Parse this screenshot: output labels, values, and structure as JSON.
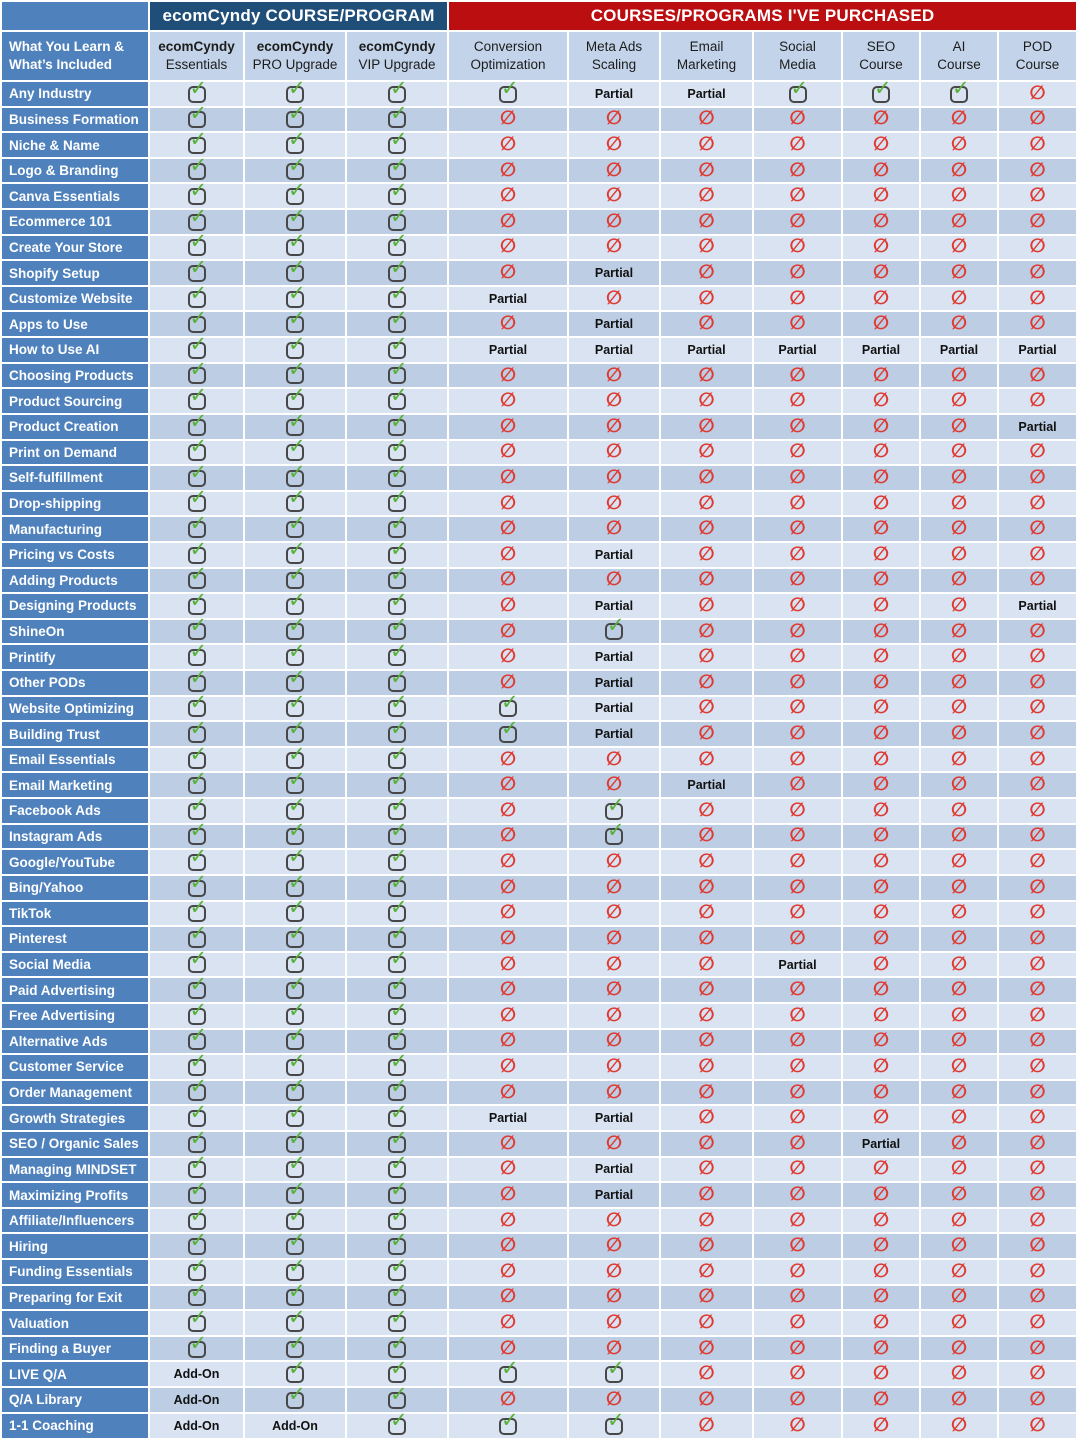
{
  "header": {
    "group1": "ecomCyndy COURSE/PROGRAM",
    "group2": "COURSES/PROGRAMS I'VE PURCHASED",
    "row_header_line1": "What You Learn &",
    "row_header_line2": "What’s Included"
  },
  "labels": {
    "partial": "Partial",
    "addon": "Add-On"
  },
  "icons": {
    "check": "check-icon",
    "no": "not-included-icon"
  },
  "colors": {
    "group_blue": "#1F4E79",
    "group_red": "#BB0E10",
    "label_blue": "#4F81BD",
    "col_header_bg": "#C3D4EA",
    "row_light": "#D9E3F1",
    "row_dark": "#BCCDE4",
    "check_green": "#58B23A",
    "no_red": "#DE3A31"
  },
  "chart_data": {
    "type": "table",
    "title": "ecomCyndy course comparison",
    "cell_codes": {
      "check": "included",
      "no": "not included",
      "partial": "partially included",
      "addon": "available as add-on"
    },
    "columns": [
      {
        "id": "ecomcyndy-essentials",
        "line1": "ecomCyndy",
        "line2": "Essentials",
        "bold": true
      },
      {
        "id": "ecomcyndy-pro-upgrade",
        "line1": "ecomCyndy",
        "line2": "PRO Upgrade",
        "bold": true
      },
      {
        "id": "ecomcyndy-vip-upgrade",
        "line1": "ecomCyndy",
        "line2": "VIP Upgrade",
        "bold": true
      },
      {
        "id": "conversion-optimization",
        "line1": "Conversion",
        "line2": "Optimization",
        "bold": false
      },
      {
        "id": "meta-ads-scaling",
        "line1": "Meta Ads",
        "line2": "Scaling",
        "bold": false
      },
      {
        "id": "email-marketing",
        "line1": "Email",
        "line2": "Marketing",
        "bold": false
      },
      {
        "id": "social-media",
        "line1": "Social",
        "line2": "Media",
        "bold": false
      },
      {
        "id": "seo-course",
        "line1": "SEO",
        "line2": "Course",
        "bold": false
      },
      {
        "id": "ai-course",
        "line1": "AI",
        "line2": "Course",
        "bold": false
      },
      {
        "id": "pod-course",
        "line1": "POD",
        "line2": "Course",
        "bold": false
      }
    ],
    "rows": [
      {
        "label": "Any Industry",
        "cells": [
          "check",
          "check",
          "check",
          "check",
          "partial",
          "partial",
          "check",
          "check",
          "check",
          "no"
        ]
      },
      {
        "label": "Business Formation",
        "cells": [
          "check",
          "check",
          "check",
          "no",
          "no",
          "no",
          "no",
          "no",
          "no",
          "no"
        ]
      },
      {
        "label": "Niche & Name",
        "cells": [
          "check",
          "check",
          "check",
          "no",
          "no",
          "no",
          "no",
          "no",
          "no",
          "no"
        ]
      },
      {
        "label": "Logo & Branding",
        "cells": [
          "check",
          "check",
          "check",
          "no",
          "no",
          "no",
          "no",
          "no",
          "no",
          "no"
        ]
      },
      {
        "label": "Canva Essentials",
        "cells": [
          "check",
          "check",
          "check",
          "no",
          "no",
          "no",
          "no",
          "no",
          "no",
          "no"
        ]
      },
      {
        "label": "Ecommerce 101",
        "cells": [
          "check",
          "check",
          "check",
          "no",
          "no",
          "no",
          "no",
          "no",
          "no",
          "no"
        ]
      },
      {
        "label": "Create Your Store",
        "cells": [
          "check",
          "check",
          "check",
          "no",
          "no",
          "no",
          "no",
          "no",
          "no",
          "no"
        ]
      },
      {
        "label": "Shopify Setup",
        "cells": [
          "check",
          "check",
          "check",
          "no",
          "partial",
          "no",
          "no",
          "no",
          "no",
          "no"
        ]
      },
      {
        "label": "Customize Website",
        "cells": [
          "check",
          "check",
          "check",
          "partial",
          "no",
          "no",
          "no",
          "no",
          "no",
          "no"
        ]
      },
      {
        "label": "Apps to Use",
        "cells": [
          "check",
          "check",
          "check",
          "no",
          "partial",
          "no",
          "no",
          "no",
          "no",
          "no"
        ]
      },
      {
        "label": "How to Use AI",
        "cells": [
          "check",
          "check",
          "check",
          "partial",
          "partial",
          "partial",
          "partial",
          "partial",
          "partial",
          "partial"
        ]
      },
      {
        "label": "Choosing Products",
        "cells": [
          "check",
          "check",
          "check",
          "no",
          "no",
          "no",
          "no",
          "no",
          "no",
          "no"
        ]
      },
      {
        "label": "Product Sourcing",
        "cells": [
          "check",
          "check",
          "check",
          "no",
          "no",
          "no",
          "no",
          "no",
          "no",
          "no"
        ]
      },
      {
        "label": "Product Creation",
        "cells": [
          "check",
          "check",
          "check",
          "no",
          "no",
          "no",
          "no",
          "no",
          "no",
          "partial"
        ]
      },
      {
        "label": "Print on Demand",
        "cells": [
          "check",
          "check",
          "check",
          "no",
          "no",
          "no",
          "no",
          "no",
          "no",
          "no"
        ]
      },
      {
        "label": "Self-fulfillment",
        "cells": [
          "check",
          "check",
          "check",
          "no",
          "no",
          "no",
          "no",
          "no",
          "no",
          "no"
        ]
      },
      {
        "label": "Drop-shipping",
        "cells": [
          "check",
          "check",
          "check",
          "no",
          "no",
          "no",
          "no",
          "no",
          "no",
          "no"
        ]
      },
      {
        "label": "Manufacturing",
        "cells": [
          "check",
          "check",
          "check",
          "no",
          "no",
          "no",
          "no",
          "no",
          "no",
          "no"
        ]
      },
      {
        "label": "Pricing vs Costs",
        "cells": [
          "check",
          "check",
          "check",
          "no",
          "partial",
          "no",
          "no",
          "no",
          "no",
          "no"
        ]
      },
      {
        "label": "Adding Products",
        "cells": [
          "check",
          "check",
          "check",
          "no",
          "no",
          "no",
          "no",
          "no",
          "no",
          "no"
        ]
      },
      {
        "label": "Designing Products",
        "cells": [
          "check",
          "check",
          "check",
          "no",
          "partial",
          "no",
          "no",
          "no",
          "no",
          "partial"
        ]
      },
      {
        "label": "ShineOn",
        "cells": [
          "check",
          "check",
          "check",
          "no",
          "check",
          "no",
          "no",
          "no",
          "no",
          "no"
        ]
      },
      {
        "label": "Printify",
        "cells": [
          "check",
          "check",
          "check",
          "no",
          "partial",
          "no",
          "no",
          "no",
          "no",
          "no"
        ]
      },
      {
        "label": "Other PODs",
        "cells": [
          "check",
          "check",
          "check",
          "no",
          "partial",
          "no",
          "no",
          "no",
          "no",
          "no"
        ]
      },
      {
        "label": "Website Optimizing",
        "cells": [
          "check",
          "check",
          "check",
          "check",
          "partial",
          "no",
          "no",
          "no",
          "no",
          "no"
        ]
      },
      {
        "label": "Building Trust",
        "cells": [
          "check",
          "check",
          "check",
          "check",
          "partial",
          "no",
          "no",
          "no",
          "no",
          "no"
        ]
      },
      {
        "label": "Email Essentials",
        "cells": [
          "check",
          "check",
          "check",
          "no",
          "no",
          "no",
          "no",
          "no",
          "no",
          "no"
        ]
      },
      {
        "label": "Email Marketing",
        "cells": [
          "check",
          "check",
          "check",
          "no",
          "no",
          "partial",
          "no",
          "no",
          "no",
          "no"
        ]
      },
      {
        "label": "Facebook Ads",
        "cells": [
          "check",
          "check",
          "check",
          "no",
          "check",
          "no",
          "no",
          "no",
          "no",
          "no"
        ]
      },
      {
        "label": "Instagram Ads",
        "cells": [
          "check",
          "check",
          "check",
          "no",
          "check",
          "no",
          "no",
          "no",
          "no",
          "no"
        ]
      },
      {
        "label": "Google/YouTube",
        "cells": [
          "check",
          "check",
          "check",
          "no",
          "no",
          "no",
          "no",
          "no",
          "no",
          "no"
        ]
      },
      {
        "label": "Bing/Yahoo",
        "cells": [
          "check",
          "check",
          "check",
          "no",
          "no",
          "no",
          "no",
          "no",
          "no",
          "no"
        ]
      },
      {
        "label": "TikTok",
        "cells": [
          "check",
          "check",
          "check",
          "no",
          "no",
          "no",
          "no",
          "no",
          "no",
          "no"
        ]
      },
      {
        "label": "Pinterest",
        "cells": [
          "check",
          "check",
          "check",
          "no",
          "no",
          "no",
          "no",
          "no",
          "no",
          "no"
        ]
      },
      {
        "label": "Social Media",
        "cells": [
          "check",
          "check",
          "check",
          "no",
          "no",
          "no",
          "partial",
          "no",
          "no",
          "no"
        ]
      },
      {
        "label": "Paid Advertising",
        "cells": [
          "check",
          "check",
          "check",
          "no",
          "no",
          "no",
          "no",
          "no",
          "no",
          "no"
        ]
      },
      {
        "label": "Free Advertising",
        "cells": [
          "check",
          "check",
          "check",
          "no",
          "no",
          "no",
          "no",
          "no",
          "no",
          "no"
        ]
      },
      {
        "label": "Alternative Ads",
        "cells": [
          "check",
          "check",
          "check",
          "no",
          "no",
          "no",
          "no",
          "no",
          "no",
          "no"
        ]
      },
      {
        "label": "Customer Service",
        "cells": [
          "check",
          "check",
          "check",
          "no",
          "no",
          "no",
          "no",
          "no",
          "no",
          "no"
        ]
      },
      {
        "label": "Order Management",
        "cells": [
          "check",
          "check",
          "check",
          "no",
          "no",
          "no",
          "no",
          "no",
          "no",
          "no"
        ]
      },
      {
        "label": "Growth Strategies",
        "cells": [
          "check",
          "check",
          "check",
          "partial",
          "partial",
          "no",
          "no",
          "no",
          "no",
          "no"
        ]
      },
      {
        "label": "SEO / Organic Sales",
        "cells": [
          "check",
          "check",
          "check",
          "no",
          "no",
          "no",
          "no",
          "partial",
          "no",
          "no"
        ]
      },
      {
        "label": "Managing MINDSET",
        "cells": [
          "check",
          "check",
          "check",
          "no",
          "partial",
          "no",
          "no",
          "no",
          "no",
          "no"
        ]
      },
      {
        "label": "Maximizing Profits",
        "cells": [
          "check",
          "check",
          "check",
          "no",
          "partial",
          "no",
          "no",
          "no",
          "no",
          "no"
        ]
      },
      {
        "label": "Affiliate/Influencers",
        "cells": [
          "check",
          "check",
          "check",
          "no",
          "no",
          "no",
          "no",
          "no",
          "no",
          "no"
        ]
      },
      {
        "label": "Hiring",
        "cells": [
          "check",
          "check",
          "check",
          "no",
          "no",
          "no",
          "no",
          "no",
          "no",
          "no"
        ]
      },
      {
        "label": "Funding Essentials",
        "cells": [
          "check",
          "check",
          "check",
          "no",
          "no",
          "no",
          "no",
          "no",
          "no",
          "no"
        ]
      },
      {
        "label": "Preparing for Exit",
        "cells": [
          "check",
          "check",
          "check",
          "no",
          "no",
          "no",
          "no",
          "no",
          "no",
          "no"
        ]
      },
      {
        "label": "Valuation",
        "cells": [
          "check",
          "check",
          "check",
          "no",
          "no",
          "no",
          "no",
          "no",
          "no",
          "no"
        ]
      },
      {
        "label": "Finding a Buyer",
        "cells": [
          "check",
          "check",
          "check",
          "no",
          "no",
          "no",
          "no",
          "no",
          "no",
          "no"
        ]
      },
      {
        "label": "LIVE Q/A",
        "cells": [
          "addon",
          "check",
          "check",
          "check",
          "check",
          "no",
          "no",
          "no",
          "no",
          "no"
        ]
      },
      {
        "label": "Q/A Library",
        "cells": [
          "addon",
          "check",
          "check",
          "no",
          "no",
          "no",
          "no",
          "no",
          "no",
          "no"
        ]
      },
      {
        "label": "1-1 Coaching",
        "cells": [
          "addon",
          "addon",
          "check",
          "check",
          "check",
          "no",
          "no",
          "no",
          "no",
          "no"
        ]
      }
    ]
  }
}
